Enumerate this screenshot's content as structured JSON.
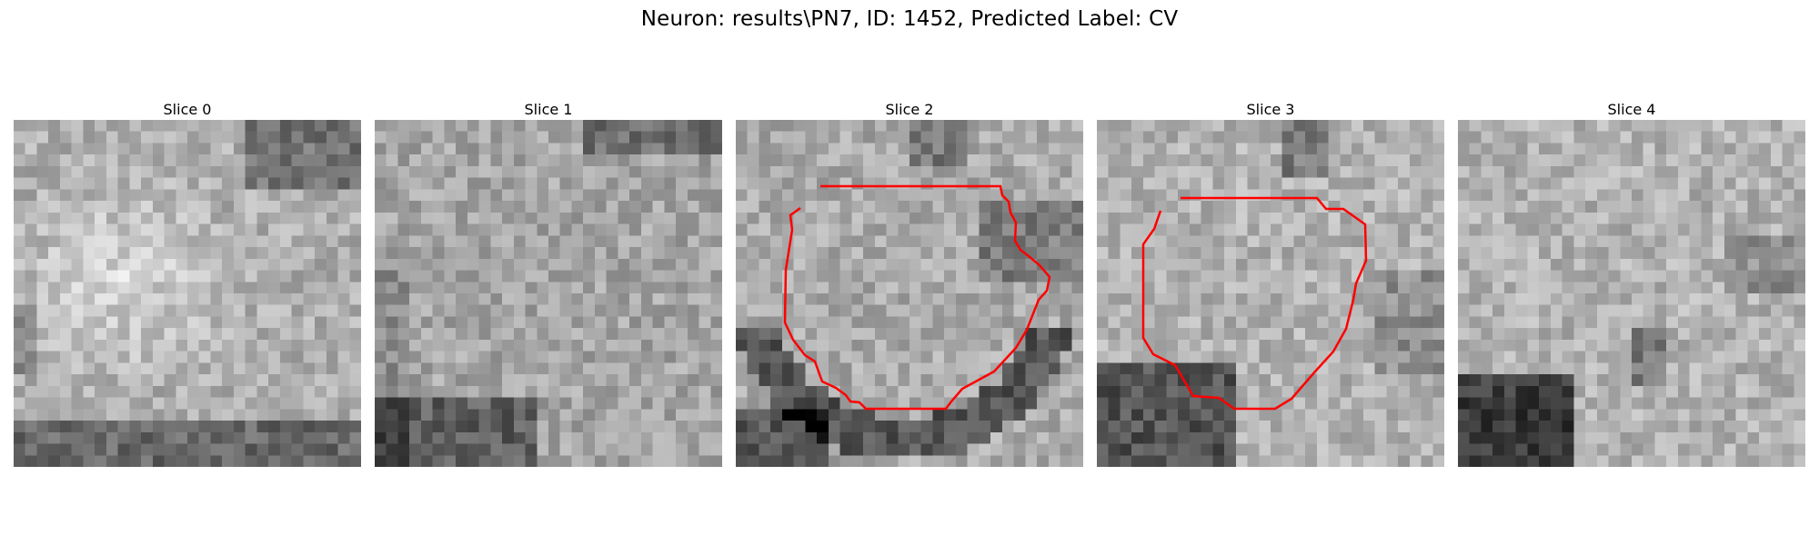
{
  "figure": {
    "title": "Neuron: results\\PN7, ID: 1452, Predicted Label: CV"
  },
  "slices": [
    {
      "label": "Slice 0",
      "seed": 11,
      "pattern": "bright-blob-upper",
      "has_contour": false
    },
    {
      "label": "Slice 1",
      "seed": 23,
      "pattern": "speckle",
      "has_contour": false
    },
    {
      "label": "Slice 2",
      "seed": 37,
      "pattern": "ring-dark-bottom",
      "has_contour": true
    },
    {
      "label": "Slice 3",
      "seed": 53,
      "pattern": "ring-dark-bottom-left",
      "has_contour": true
    },
    {
      "label": "Slice 4",
      "seed": 71,
      "pattern": "dark-bottom-left",
      "has_contour": false
    }
  ],
  "colors": {
    "contour": "#ff0000",
    "background": "#ffffff"
  }
}
